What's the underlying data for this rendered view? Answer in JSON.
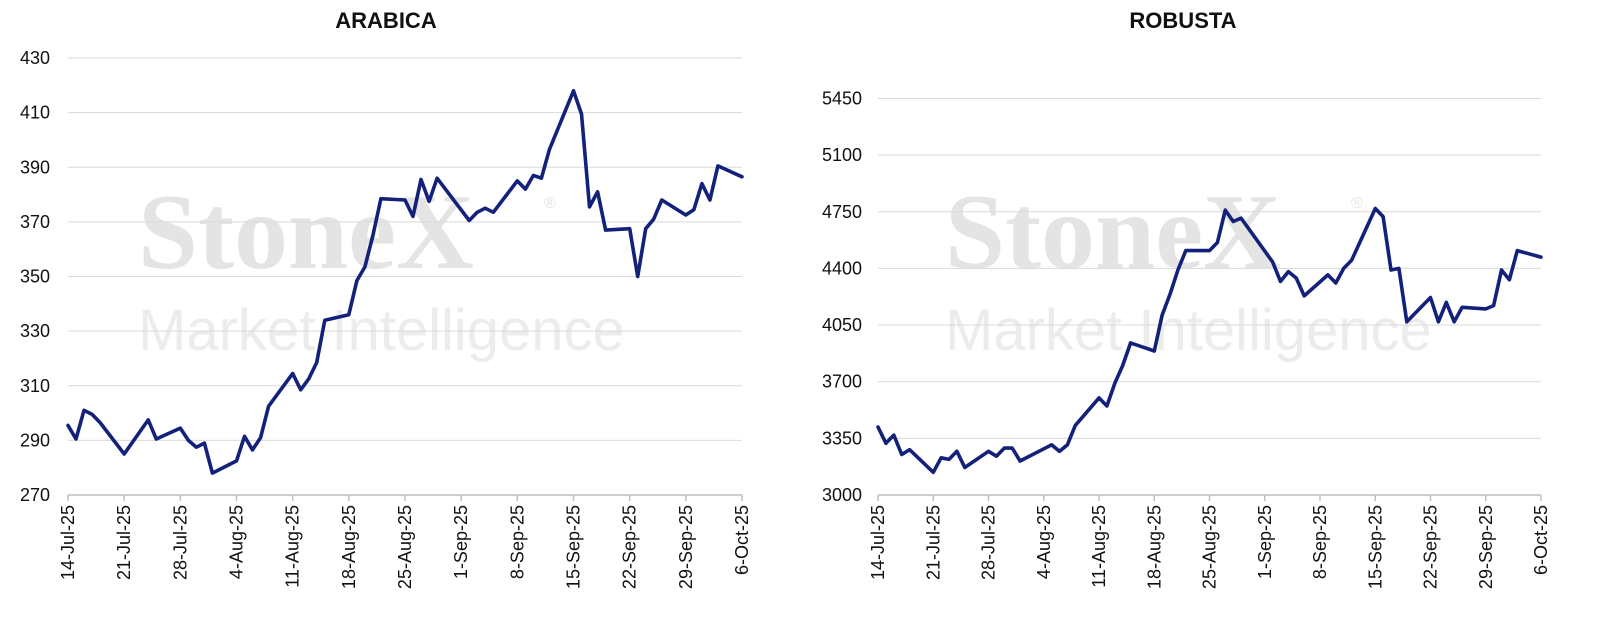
{
  "watermark": {
    "brand": "StoneX",
    "tagline": "Market Intelligence",
    "registered": "®"
  },
  "chart_data": [
    {
      "type": "line",
      "title": "ARABICA",
      "ylim": [
        270,
        430
      ],
      "yticks": [
        270,
        290,
        310,
        330,
        350,
        370,
        390,
        410,
        430
      ],
      "xlim": [
        "2025-07-14",
        "2025-10-06"
      ],
      "xticks": [
        {
          "date": "2025-07-14",
          "label": "14-Jul-25"
        },
        {
          "date": "2025-07-21",
          "label": "21-Jul-25"
        },
        {
          "date": "2025-07-28",
          "label": "28-Jul-25"
        },
        {
          "date": "2025-08-04",
          "label": "4-Aug-25"
        },
        {
          "date": "2025-08-11",
          "label": "11-Aug-25"
        },
        {
          "date": "2025-08-18",
          "label": "18-Aug-25"
        },
        {
          "date": "2025-08-25",
          "label": "25-Aug-25"
        },
        {
          "date": "2025-09-01",
          "label": "1-Sep-25"
        },
        {
          "date": "2025-09-08",
          "label": "8-Sep-25"
        },
        {
          "date": "2025-09-15",
          "label": "15-Sep-25"
        },
        {
          "date": "2025-09-22",
          "label": "22-Sep-25"
        },
        {
          "date": "2025-09-29",
          "label": "29-Sep-25"
        },
        {
          "date": "2025-10-06",
          "label": "6-Oct-25"
        }
      ],
      "grid": true,
      "line_color": "#14217a",
      "series": [
        {
          "points": [
            [
              "2025-07-14",
              295.5
            ],
            [
              "2025-07-15",
              290.5
            ],
            [
              "2025-07-16",
              301.0
            ],
            [
              "2025-07-17",
              299.5
            ],
            [
              "2025-07-18",
              296.5
            ],
            [
              "2025-07-21",
              285.0
            ],
            [
              "2025-07-24",
              297.5
            ],
            [
              "2025-07-25",
              290.5
            ],
            [
              "2025-07-28",
              294.5
            ],
            [
              "2025-07-29",
              290.0
            ],
            [
              "2025-07-30",
              287.5
            ],
            [
              "2025-07-31",
              289.0
            ],
            [
              "2025-08-01",
              278.0
            ],
            [
              "2025-08-04",
              282.5
            ],
            [
              "2025-08-05",
              291.5
            ],
            [
              "2025-08-06",
              286.5
            ],
            [
              "2025-08-07",
              291.0
            ],
            [
              "2025-08-08",
              302.5
            ],
            [
              "2025-08-11",
              314.5
            ],
            [
              "2025-08-12",
              308.5
            ],
            [
              "2025-08-13",
              312.5
            ],
            [
              "2025-08-14",
              318.5
            ],
            [
              "2025-08-15",
              334.0
            ],
            [
              "2025-08-18",
              336.0
            ],
            [
              "2025-08-19",
              348.5
            ],
            [
              "2025-08-20",
              353.5
            ],
            [
              "2025-08-21",
              365.0
            ],
            [
              "2025-08-22",
              378.5
            ],
            [
              "2025-08-25",
              378.0
            ],
            [
              "2025-08-26",
              372.0
            ],
            [
              "2025-08-27",
              385.5
            ],
            [
              "2025-08-28",
              377.5
            ],
            [
              "2025-08-29",
              386.0
            ],
            [
              "2025-09-02",
              370.5
            ],
            [
              "2025-09-03",
              373.5
            ],
            [
              "2025-09-04",
              375.0
            ],
            [
              "2025-09-05",
              373.5
            ],
            [
              "2025-09-08",
              385.0
            ],
            [
              "2025-09-09",
              382.0
            ],
            [
              "2025-09-10",
              387.0
            ],
            [
              "2025-09-11",
              386.0
            ],
            [
              "2025-09-12",
              396.5
            ],
            [
              "2025-09-15",
              418.0
            ],
            [
              "2025-09-16",
              409.5
            ],
            [
              "2025-09-17",
              375.5
            ],
            [
              "2025-09-18",
              381.0
            ],
            [
              "2025-09-19",
              367.0
            ],
            [
              "2025-09-22",
              367.5
            ],
            [
              "2025-09-23",
              350.0
            ],
            [
              "2025-09-24",
              367.5
            ],
            [
              "2025-09-25",
              371.0
            ],
            [
              "2025-09-26",
              378.0
            ],
            [
              "2025-09-29",
              372.5
            ],
            [
              "2025-09-30",
              374.5
            ],
            [
              "2025-10-01",
              384.0
            ],
            [
              "2025-10-02",
              378.0
            ],
            [
              "2025-10-03",
              390.5
            ],
            [
              "2025-10-06",
              386.5
            ]
          ]
        }
      ]
    },
    {
      "type": "line",
      "title": "ROBUSTA",
      "ylim": [
        3000,
        5700
      ],
      "yticks": [
        3000,
        3350,
        3700,
        4050,
        4400,
        4750,
        5100,
        5450
      ],
      "xlim": [
        "2025-07-14",
        "2025-10-06"
      ],
      "xticks": [
        {
          "date": "2025-07-14",
          "label": "14-Jul-25"
        },
        {
          "date": "2025-07-21",
          "label": "21-Jul-25"
        },
        {
          "date": "2025-07-28",
          "label": "28-Jul-25"
        },
        {
          "date": "2025-08-04",
          "label": "4-Aug-25"
        },
        {
          "date": "2025-08-11",
          "label": "11-Aug-25"
        },
        {
          "date": "2025-08-18",
          "label": "18-Aug-25"
        },
        {
          "date": "2025-08-25",
          "label": "25-Aug-25"
        },
        {
          "date": "2025-09-01",
          "label": "1-Sep-25"
        },
        {
          "date": "2025-09-08",
          "label": "8-Sep-25"
        },
        {
          "date": "2025-09-15",
          "label": "15-Sep-25"
        },
        {
          "date": "2025-09-22",
          "label": "22-Sep-25"
        },
        {
          "date": "2025-09-29",
          "label": "29-Sep-25"
        },
        {
          "date": "2025-10-06",
          "label": "6-Oct-25"
        }
      ],
      "grid": true,
      "line_color": "#14217a",
      "series": [
        {
          "points": [
            [
              "2025-07-14",
              3420
            ],
            [
              "2025-07-15",
              3320
            ],
            [
              "2025-07-16",
              3370
            ],
            [
              "2025-07-17",
              3250
            ],
            [
              "2025-07-18",
              3280
            ],
            [
              "2025-07-21",
              3140
            ],
            [
              "2025-07-22",
              3230
            ],
            [
              "2025-07-23",
              3220
            ],
            [
              "2025-07-24",
              3270
            ],
            [
              "2025-07-25",
              3170
            ],
            [
              "2025-07-28",
              3270
            ],
            [
              "2025-07-29",
              3240
            ],
            [
              "2025-07-30",
              3290
            ],
            [
              "2025-07-31",
              3290
            ],
            [
              "2025-08-01",
              3210
            ],
            [
              "2025-08-05",
              3310
            ],
            [
              "2025-08-06",
              3270
            ],
            [
              "2025-08-07",
              3310
            ],
            [
              "2025-08-08",
              3430
            ],
            [
              "2025-08-11",
              3600
            ],
            [
              "2025-08-12",
              3550
            ],
            [
              "2025-08-13",
              3690
            ],
            [
              "2025-08-14",
              3800
            ],
            [
              "2025-08-15",
              3940
            ],
            [
              "2025-08-18",
              3890
            ],
            [
              "2025-08-19",
              4110
            ],
            [
              "2025-08-20",
              4240
            ],
            [
              "2025-08-21",
              4390
            ],
            [
              "2025-08-22",
              4510
            ],
            [
              "2025-08-25",
              4510
            ],
            [
              "2025-08-26",
              4560
            ],
            [
              "2025-08-27",
              4760
            ],
            [
              "2025-08-28",
              4690
            ],
            [
              "2025-08-29",
              4710
            ],
            [
              "2025-09-02",
              4440
            ],
            [
              "2025-09-03",
              4320
            ],
            [
              "2025-09-04",
              4380
            ],
            [
              "2025-09-05",
              4340
            ],
            [
              "2025-09-06",
              4230
            ],
            [
              "2025-09-09",
              4360
            ],
            [
              "2025-09-10",
              4310
            ],
            [
              "2025-09-11",
              4400
            ],
            [
              "2025-09-12",
              4450
            ],
            [
              "2025-09-15",
              4770
            ],
            [
              "2025-09-16",
              4720
            ],
            [
              "2025-09-17",
              4390
            ],
            [
              "2025-09-18",
              4400
            ],
            [
              "2025-09-19",
              4070
            ],
            [
              "2025-09-22",
              4220
            ],
            [
              "2025-09-23",
              4070
            ],
            [
              "2025-09-24",
              4190
            ],
            [
              "2025-09-25",
              4070
            ],
            [
              "2025-09-26",
              4160
            ],
            [
              "2025-09-29",
              4150
            ],
            [
              "2025-09-30",
              4170
            ],
            [
              "2025-10-01",
              4390
            ],
            [
              "2025-10-02",
              4330
            ],
            [
              "2025-10-03",
              4510
            ],
            [
              "2025-10-06",
              4470
            ]
          ]
        }
      ]
    }
  ]
}
